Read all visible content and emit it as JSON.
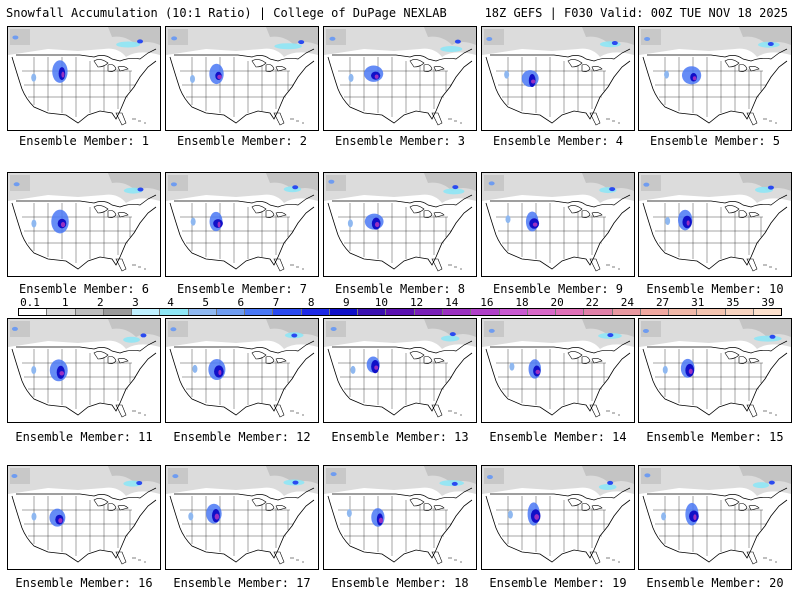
{
  "header": {
    "title_left": "Snowfall Accumulation (10:1 Ratio) | College of DuPage NEXLAB",
    "title_right": "18Z GEFS | F030 Valid: 00Z TUE NOV 18 2025"
  },
  "legend": {
    "tick_labels": [
      "0.1",
      "1",
      "2",
      "3",
      "4",
      "5",
      "6",
      "7",
      "8",
      "9",
      "10",
      "12",
      "14",
      "16",
      "18",
      "20",
      "22",
      "24",
      "27",
      "31",
      "35",
      "39"
    ],
    "colors": [
      "#ffffff",
      "#d9d9d9",
      "#bdbdbd",
      "#9a9a9a",
      "#bff0ff",
      "#8ee6f5",
      "#8fb8f0",
      "#6f9cf0",
      "#4a78f5",
      "#2a4af0",
      "#1e2ae6",
      "#1010c8",
      "#3a10b0",
      "#5a10b0",
      "#7a20b8",
      "#9a30c0",
      "#b040c8",
      "#c858d0",
      "#d868c8",
      "#e070b8",
      "#e080a8",
      "#e898a0",
      "#f0a8a0",
      "#f0b8a8",
      "#f4c4b0",
      "#f8d4c0",
      "#fce0cc"
    ]
  },
  "panels": [
    {
      "label": "Ensemble Member: 1",
      "icon": "forecast-map"
    },
    {
      "label": "Ensemble Member: 2",
      "icon": "forecast-map"
    },
    {
      "label": "Ensemble Member: 3",
      "icon": "forecast-map"
    },
    {
      "label": "Ensemble Member: 4",
      "icon": "forecast-map"
    },
    {
      "label": "Ensemble Member: 5",
      "icon": "forecast-map"
    },
    {
      "label": "Ensemble Member: 6",
      "icon": "forecast-map"
    },
    {
      "label": "Ensemble Member: 7",
      "icon": "forecast-map"
    },
    {
      "label": "Ensemble Member: 8",
      "icon": "forecast-map"
    },
    {
      "label": "Ensemble Member: 9",
      "icon": "forecast-map"
    },
    {
      "label": "Ensemble Member: 10",
      "icon": "forecast-map"
    },
    {
      "label": "Ensemble Member: 11",
      "icon": "forecast-map"
    },
    {
      "label": "Ensemble Member: 12",
      "icon": "forecast-map"
    },
    {
      "label": "Ensemble Member: 13",
      "icon": "forecast-map"
    },
    {
      "label": "Ensemble Member: 14",
      "icon": "forecast-map"
    },
    {
      "label": "Ensemble Member: 15",
      "icon": "forecast-map"
    },
    {
      "label": "Ensemble Member: 16",
      "icon": "forecast-map"
    },
    {
      "label": "Ensemble Member: 17",
      "icon": "forecast-map"
    },
    {
      "label": "Ensemble Member: 18",
      "icon": "forecast-map"
    },
    {
      "label": "Ensemble Member: 19",
      "icon": "forecast-map"
    },
    {
      "label": "Ensemble Member: 20",
      "icon": "forecast-map"
    }
  ]
}
